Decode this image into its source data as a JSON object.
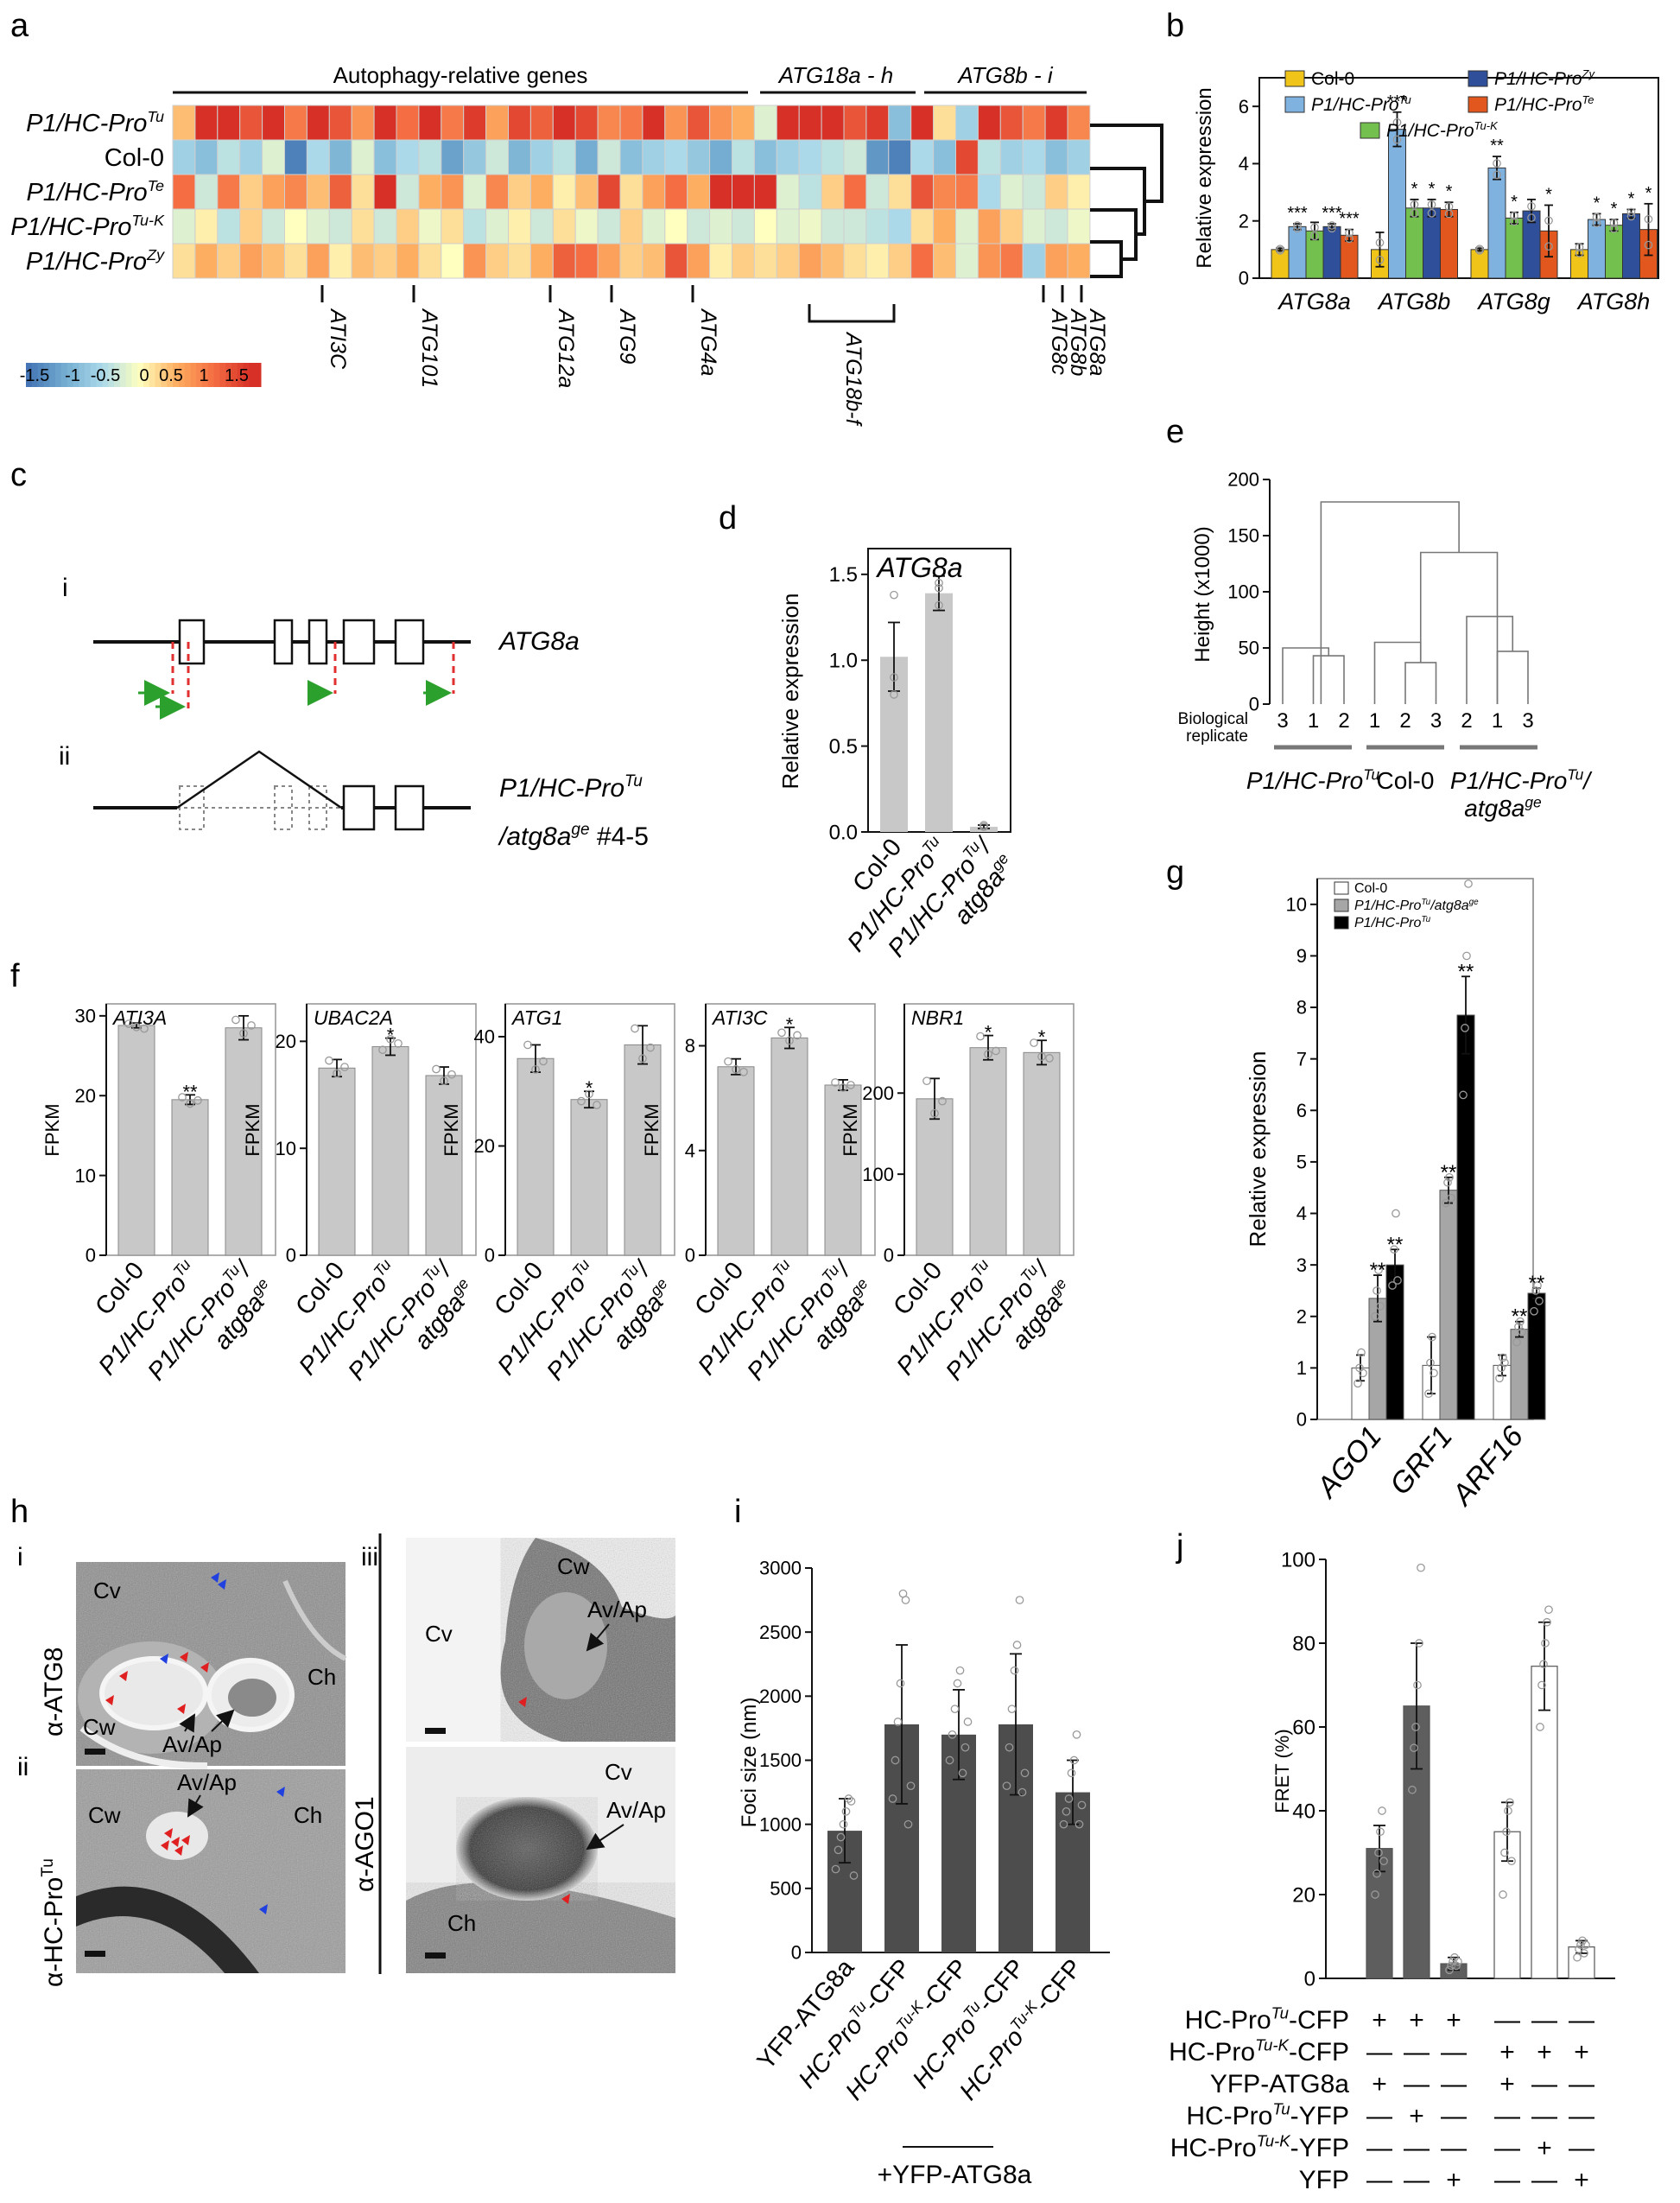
{
  "panels": {
    "a": "a",
    "b": "b",
    "c": "c",
    "d": "d",
    "e": "e",
    "f": "f",
    "g": "g",
    "h": "h",
    "i": "i",
    "j": "j"
  },
  "colors": {
    "bar_gray": "#c8c8c8",
    "bar_dark": "#4d4d4d",
    "bar_black": "#000000",
    "col0": "#f0c419",
    "tu": "#7fb2df",
    "tuk": "#74c04e",
    "zy": "#2f4f9a",
    "te": "#e2571d",
    "green_arrow": "#2ca02c",
    "red_dash": "#e03030"
  },
  "heatmap": {
    "header_autophagy": "Autophagy-relative genes",
    "header_atg18": "ATG18a - h",
    "header_atg8": "ATG8b - i",
    "rows": [
      {
        "label": "P1/HC-Pro",
        "sup": "Tu"
      },
      {
        "label": "Col-0",
        "sup": ""
      },
      {
        "label": "P1/HC-Pro",
        "sup": "Te"
      },
      {
        "label": "P1/HC-Pro",
        "sup": "Tu-K"
      },
      {
        "label": "P1/HC-Pro",
        "sup": "Zy"
      }
    ],
    "colorbar_ticks": [
      "-1.5",
      "-1",
      "-0.5",
      "0",
      "0.5",
      "1",
      "1.5"
    ],
    "gene_labels": [
      "ATI3C",
      "ATG101",
      "ATG12a",
      "ATG9",
      "ATG4a",
      "ATG18b-f",
      "ATG8c",
      "ATG8b",
      "ATG8a"
    ],
    "values": [
      [
        0.4,
        1.6,
        1.5,
        1.2,
        1.6,
        0.9,
        1.5,
        1.2,
        0.7,
        1.6,
        1.0,
        1.5,
        0.9,
        1.4,
        0.6,
        1.3,
        1.1,
        1.5,
        1.3,
        0.8,
        0.9,
        1.5,
        0.7,
        1.2,
        0.7,
        0.5,
        -0.2,
        1.6,
        1.6,
        1.5,
        1.2,
        1.4,
        -0.8,
        1.5,
        0.2,
        -0.6,
        1.6,
        1.2,
        0.9,
        1.4,
        0.8
      ],
      [
        -0.6,
        -0.8,
        -0.4,
        -0.6,
        -0.2,
        -1.4,
        -0.5,
        -0.9,
        -0.2,
        -0.8,
        -0.5,
        -0.4,
        -1.1,
        -0.7,
        -0.3,
        -0.9,
        -0.6,
        -0.4,
        -1.0,
        -0.3,
        -0.8,
        -0.6,
        -0.5,
        -0.7,
        -1.0,
        -0.4,
        -0.8,
        -0.6,
        -0.5,
        -0.4,
        -0.3,
        -1.2,
        -1.4,
        -0.5,
        -0.8,
        1.3,
        -0.4,
        -0.6,
        -0.5,
        -0.8,
        -0.6
      ],
      [
        1.0,
        -0.3,
        0.9,
        0.3,
        0.6,
        0.8,
        0.4,
        1.1,
        0.2,
        1.6,
        -0.3,
        0.5,
        0.7,
        -0.2,
        0.8,
        0.3,
        0.5,
        0.1,
        0.4,
        1.3,
        0.2,
        0.6,
        1.0,
        0.5,
        1.6,
        1.6,
        1.5,
        -0.2,
        -0.4,
        0.3,
        1.0,
        -0.3,
        0.2,
        1.2,
        0.8,
        0.9,
        -0.5,
        -0.2,
        -0.3,
        0.3,
        0.1
      ],
      [
        -0.2,
        0.1,
        -0.4,
        0.3,
        -0.3,
        0.0,
        -0.2,
        -0.3,
        0.2,
        -0.3,
        0.3,
        -0.1,
        0.2,
        -0.4,
        -0.2,
        0.1,
        -0.3,
        0.2,
        -0.1,
        -0.3,
        0.3,
        -0.2,
        0.0,
        -0.3,
        -0.2,
        -0.3,
        0.0,
        -0.2,
        -0.1,
        -0.3,
        -0.3,
        -0.4,
        -0.5,
        0.2,
        0.5,
        -0.2,
        0.6,
        0.3,
        -0.2,
        -0.3,
        -0.1
      ],
      [
        0.2,
        0.5,
        0.3,
        0.6,
        0.4,
        0.2,
        0.6,
        0.1,
        0.4,
        0.3,
        0.5,
        0.2,
        0.0,
        0.7,
        0.3,
        0.2,
        0.5,
        1.1,
        1.0,
        0.6,
        0.3,
        0.4,
        1.2,
        0.6,
        0.1,
        0.3,
        0.2,
        0.3,
        0.6,
        0.4,
        0.2,
        0.1,
        0.3,
        1.0,
        0.4,
        -0.2,
        0.7,
        0.9,
        -0.6,
        0.6,
        0.5
      ]
    ]
  },
  "chart_data": [
    {
      "panel": "b",
      "type": "bar",
      "ylabel": "Relative expression",
      "ylim": [
        0,
        7
      ],
      "yticks": [
        0,
        2,
        4,
        6
      ],
      "categories": [
        "ATG8a",
        "ATG8b",
        "ATG8g",
        "ATG8h"
      ],
      "legend": [
        {
          "label": "Col-0",
          "sup": ""
        },
        {
          "label": "P1/HC-Pro",
          "sup": "Tu"
        },
        {
          "label": "P1/HC-Pro",
          "sup": "Tu-K"
        },
        {
          "label": "P1/HC-Pro",
          "sup": "Zy"
        },
        {
          "label": "P1/HC-Pro",
          "sup": "Te"
        }
      ],
      "series": [
        {
          "values": [
            1.0,
            1.0,
            1.0,
            1.0
          ],
          "err": [
            0.05,
            0.6,
            0.05,
            0.2
          ]
        },
        {
          "values": [
            1.8,
            5.2,
            3.85,
            2.05
          ],
          "err": [
            0.1,
            0.6,
            0.4,
            0.2
          ]
        },
        {
          "values": [
            1.65,
            2.45,
            2.1,
            1.85
          ],
          "err": [
            0.3,
            0.3,
            0.2,
            0.2
          ]
        },
        {
          "values": [
            1.8,
            2.45,
            2.35,
            2.25
          ],
          "err": [
            0.1,
            0.3,
            0.4,
            0.15
          ]
        },
        {
          "values": [
            1.5,
            2.4,
            1.65,
            1.7
          ],
          "err": [
            0.2,
            0.25,
            0.9,
            0.9
          ]
        }
      ],
      "sig": [
        [
          "",
          "***",
          "",
          "***",
          "***"
        ],
        [
          "",
          "***",
          "*",
          "*",
          "*"
        ],
        [
          "",
          "**",
          "*",
          "",
          "*"
        ],
        [
          "",
          "*",
          "*",
          "*",
          "*"
        ]
      ]
    },
    {
      "panel": "d",
      "type": "bar",
      "title": "ATG8a",
      "ylabel": "Relative expression",
      "ylim": [
        0,
        1.65
      ],
      "yticks": [
        "0.0",
        "0.5",
        "1.0",
        "1.5"
      ],
      "categories": [
        {
          "label": "Col-0",
          "sup": "",
          "label2": ""
        },
        {
          "label": "P1/HC-Pro",
          "sup": "Tu",
          "label2": ""
        },
        {
          "label": "P1/HC-Pro",
          "sup": "Tu",
          "label2": "/",
          "line2": "atg8a",
          "sup2": "ge"
        }
      ],
      "values": [
        1.02,
        1.39,
        0.03
      ],
      "err": [
        0.2,
        0.1,
        0.01
      ]
    },
    {
      "panel": "e",
      "type": "dendrogram",
      "ylabel": "Height (x1000)",
      "ylim": [
        0,
        200
      ],
      "yticks": [
        0,
        50,
        100,
        150,
        200
      ],
      "replicate_label_1": "Biological",
      "replicate_label_2": "replicate",
      "leaves": [
        "3",
        "1",
        "2",
        "1",
        "2",
        "3",
        "2",
        "1",
        "3"
      ],
      "groups": [
        {
          "label": "P1/HC-Pro",
          "sup": "Tu",
          "line2": ""
        },
        {
          "label": "Col-0",
          "sup": "",
          "line2": ""
        },
        {
          "label": "P1/HC-Pro",
          "sup": "Tu",
          "line2": "atg8a",
          "sup2": "ge"
        }
      ],
      "merges": [
        [
          1,
          2,
          43
        ],
        [
          0,
          1.5,
          50
        ],
        [
          4,
          5,
          37
        ],
        [
          3,
          4.5,
          55
        ],
        [
          7,
          8,
          47
        ],
        [
          6,
          7.5,
          78
        ],
        [
          4.5,
          7,
          135
        ],
        [
          1.25,
          5.75,
          180
        ]
      ]
    },
    {
      "panel": "f",
      "type": "bar",
      "ylabel": "FPKM",
      "subplots": [
        {
          "title": "ATI3A",
          "ylim": [
            0,
            31.5
          ],
          "yticks": [
            0,
            10,
            20,
            30
          ],
          "values": [
            28.8,
            19.5,
            28.5
          ],
          "err": [
            0.3,
            0.6,
            1.5
          ],
          "sig": [
            "",
            "**",
            ""
          ]
        },
        {
          "title": "UBAC2A",
          "ylim": [
            0,
            23.5
          ],
          "yticks": [
            0,
            10,
            20
          ],
          "values": [
            17.5,
            19.5,
            16.8
          ],
          "err": [
            0.8,
            0.8,
            0.8
          ],
          "sig": [
            "",
            "*",
            ""
          ]
        },
        {
          "title": "ATG1",
          "ylim": [
            0,
            46
          ],
          "yticks": [
            0,
            20,
            40
          ],
          "values": [
            36,
            28.5,
            38.5
          ],
          "err": [
            2.5,
            1.5,
            3.5
          ],
          "sig": [
            "",
            "*",
            ""
          ]
        },
        {
          "title": "ATI3C",
          "ylim": [
            0,
            9.6
          ],
          "yticks": [
            0,
            4,
            8
          ],
          "values": [
            7.2,
            8.3,
            6.5
          ],
          "err": [
            0.3,
            0.4,
            0.2
          ],
          "sig": [
            "",
            "*",
            ""
          ]
        },
        {
          "title": "NBR1",
          "ylim": [
            0,
            310
          ],
          "yticks": [
            0,
            100,
            200
          ],
          "values": [
            193,
            256,
            250
          ],
          "err": [
            25,
            15,
            15
          ],
          "sig": [
            "",
            "*",
            "*"
          ]
        }
      ],
      "categories": [
        {
          "label": "Col-0",
          "sup": ""
        },
        {
          "label": "P1/HC-Pro",
          "sup": "Tu"
        },
        {
          "label": "P1/HC-Pro",
          "sup": "Tu",
          "label2": "/",
          "line2": "atg8a",
          "sup2": "ge"
        }
      ]
    },
    {
      "panel": "g",
      "type": "bar",
      "ylabel": "Relative expression",
      "ylim": [
        0,
        10.5
      ],
      "yticks": [
        0,
        1,
        2,
        3,
        4,
        5,
        6,
        7,
        8,
        9,
        10
      ],
      "categories": [
        "AGO1",
        "GRF1",
        "ARF16"
      ],
      "legend": [
        {
          "label": "Col-0",
          "sup": "",
          "tail": ""
        },
        {
          "label": "P1/HC-Pro",
          "sup": "Tu",
          "tail": "/atg8a",
          "sup2": "ge"
        },
        {
          "label": "P1/HC-Pro",
          "sup": "Tu",
          "tail": ""
        }
      ],
      "series": [
        {
          "values": [
            1.0,
            1.05,
            1.05
          ],
          "err": [
            0.25,
            0.55,
            0.2
          ]
        },
        {
          "values": [
            2.35,
            4.45,
            1.75
          ],
          "err": [
            0.45,
            0.25,
            0.15
          ]
        },
        {
          "values": [
            3.0,
            7.85,
            2.45
          ],
          "err": [
            0.3,
            0.75,
            0.1
          ]
        }
      ],
      "sig": [
        [
          "",
          "**",
          "**"
        ],
        [
          "",
          "**",
          "**"
        ],
        [
          "",
          "**",
          "**"
        ]
      ]
    },
    {
      "panel": "i",
      "type": "bar",
      "ylabel": "Foci size (nm)",
      "ylim": [
        0,
        3000
      ],
      "yticks": [
        0,
        500,
        1000,
        1500,
        2000,
        2500,
        3000
      ],
      "categories": [
        {
          "label": "YFP-ATG8a",
          "sup": "",
          "tail": ""
        },
        {
          "label": "HC-Pro",
          "sup": "Tu",
          "tail": "-CFP"
        },
        {
          "label": "HC-Pro",
          "sup": "Tu-K",
          "tail": "-CFP"
        },
        {
          "label": "HC-Pro",
          "sup": "Tu",
          "tail": "-CFP"
        },
        {
          "label": "HC-Pro",
          "sup": "Tu-K",
          "tail": "-CFP"
        }
      ],
      "values": [
        950,
        1780,
        1700,
        1780,
        1250
      ],
      "err": [
        250,
        620,
        350,
        550,
        250
      ],
      "group_label": "+YFP-ATG8a"
    },
    {
      "panel": "j",
      "type": "bar",
      "ylabel": "FRET (%)",
      "ylim": [
        0,
        100
      ],
      "yticks": [
        0,
        20,
        40,
        60,
        80,
        100
      ],
      "values": [
        31,
        65,
        3.5,
        35,
        74.5,
        7.5
      ],
      "err": [
        5.5,
        15,
        1.5,
        7,
        10.5,
        1.5
      ],
      "matrix_rows": [
        {
          "label": "HC-Pro",
          "sup": "Tu",
          "tail": "-CFP",
          "marks": [
            "+",
            "+",
            "+",
            "—",
            "—",
            "—"
          ]
        },
        {
          "label": "HC-Pro",
          "sup": "Tu-K",
          "tail": "-CFP",
          "marks": [
            "—",
            "—",
            "—",
            "+",
            "+",
            "+"
          ]
        },
        {
          "label": "YFP-ATG8a",
          "sup": "",
          "tail": "",
          "marks": [
            "+",
            "—",
            "—",
            "+",
            "—",
            "—"
          ]
        },
        {
          "label": "HC-Pro",
          "sup": "Tu",
          "tail": "-YFP",
          "marks": [
            "—",
            "+",
            "—",
            "—",
            "—",
            "—"
          ]
        },
        {
          "label": "HC-Pro",
          "sup": "Tu-K",
          "tail": "-YFP",
          "marks": [
            "—",
            "—",
            "—",
            "—",
            "+",
            "—"
          ]
        },
        {
          "label": "YFP",
          "sup": "",
          "tail": "",
          "marks": [
            "—",
            "—",
            "+",
            "—",
            "—",
            "+"
          ]
        }
      ]
    }
  ],
  "gene_c": {
    "i": "i",
    "ii": "ii",
    "label_i": "ATG8a",
    "label_ii_1": "P1/HC-Pro",
    "label_ii_sup": "Tu",
    "label_ii_2": "/atg8a",
    "label_ii_sup2": "ge",
    "label_ii_3": " #4-5"
  },
  "em": {
    "i": "i",
    "ii": "ii",
    "iii": "iii",
    "row_label_1": "α-ATG8",
    "row_label_2": "α-HC-Pro",
    "row_label_2_sup": "Tu",
    "row_label_3": "α-AGO1",
    "tags": {
      "cv": "Cv",
      "cw": "Cw",
      "ch": "Ch",
      "avap": "Av/Ap"
    }
  }
}
